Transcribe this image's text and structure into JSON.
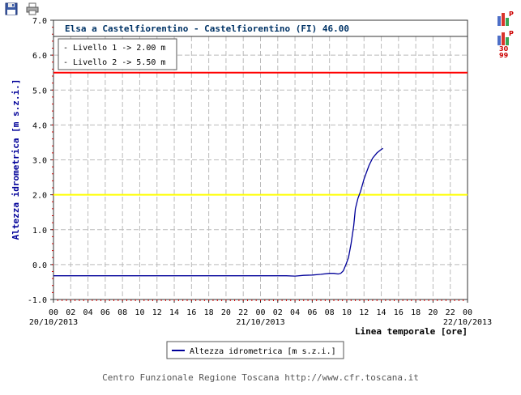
{
  "toolbar": {
    "save_icon": "floppy-disk-icon",
    "print_icon": "printer-icon"
  },
  "side_buttons": [
    {
      "icon": "bar-chart-p-icon",
      "badge": "P"
    },
    {
      "icon": "bar-chart-p-3099-icon",
      "badge": "P",
      "caption_1": "30",
      "caption_2": "99"
    }
  ],
  "footer": "Centro Funzionale Regione Toscana http://www.cfr.toscana.it",
  "colors": {
    "series": "#000099",
    "level1": "#ffff00",
    "level2": "#ff0000",
    "title": "#003366",
    "axis_red": "#cc0000"
  },
  "chart_data": {
    "type": "line",
    "title": "Elsa a Castelfiorentino - Castelfiorentino (FI) 46.00",
    "ylabel": "Altezza idrometrica [m s.z.i.]",
    "xlabel": "Linea temporale [ore]",
    "ylim": [
      -1.0,
      7.0
    ],
    "yticks": [
      "7.0",
      "6.0",
      "5.0",
      "4.0",
      "3.0",
      "2.0",
      "1.0",
      "0.0",
      "-1.0"
    ],
    "xlim": [
      0,
      48
    ],
    "xticks": [
      "00",
      "02",
      "04",
      "06",
      "08",
      "10",
      "12",
      "14",
      "16",
      "18",
      "20",
      "22",
      "00",
      "02",
      "04",
      "06",
      "08",
      "10",
      "12",
      "14",
      "16",
      "18",
      "20",
      "22",
      "00"
    ],
    "dates": [
      {
        "hour": 0,
        "label": "20/10/2013"
      },
      {
        "hour": 24,
        "label": "21/10/2013"
      },
      {
        "hour": 48,
        "label": "22/10/2013"
      }
    ],
    "grid": true,
    "thresholds": [
      {
        "label": "- Livello 1 -> 2.00 m",
        "value": 2.0
      },
      {
        "label": "- Livello 2 -> 5.50 m",
        "value": 5.5
      }
    ],
    "legend": "bottom",
    "series": [
      {
        "name": "Altezza idrometrica [m s.z.i.]",
        "x": [
          0,
          4,
          8,
          12,
          16,
          20,
          24,
          27,
          28,
          29,
          30,
          31,
          32,
          32.5,
          33,
          33.3,
          33.6,
          33.9,
          34.2,
          34.5,
          34.8,
          35,
          35.3,
          35.6,
          36,
          36.3,
          36.6,
          37,
          37.5,
          38,
          38.2
        ],
        "y": [
          -0.32,
          -0.32,
          -0.32,
          -0.32,
          -0.32,
          -0.32,
          -0.32,
          -0.32,
          -0.33,
          -0.31,
          -0.3,
          -0.28,
          -0.25,
          -0.25,
          -0.27,
          -0.25,
          -0.18,
          0.0,
          0.2,
          0.6,
          1.1,
          1.6,
          1.9,
          2.1,
          2.45,
          2.65,
          2.85,
          3.05,
          3.2,
          3.3,
          3.33
        ]
      }
    ]
  }
}
